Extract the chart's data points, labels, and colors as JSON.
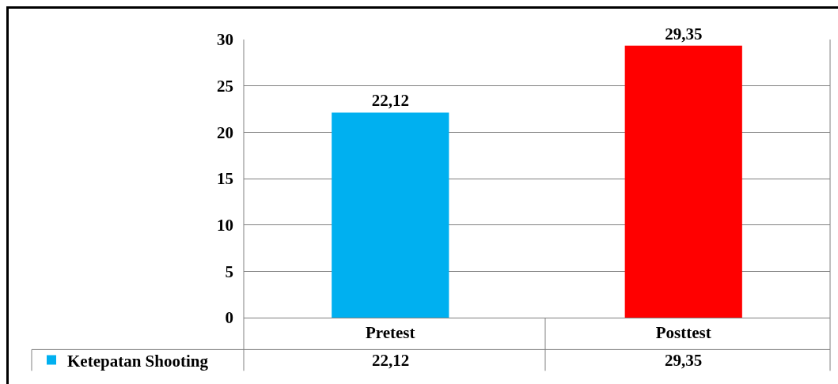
{
  "chart_data": {
    "type": "bar",
    "categories": [
      "Pretest",
      "Posttest"
    ],
    "series": [
      {
        "name": "Ketepatan Shooting",
        "colors": [
          "#00b0f0",
          "#ff0000"
        ],
        "values": [
          22.12,
          29.35
        ],
        "value_labels": [
          "22,12",
          "29,35"
        ]
      }
    ],
    "ylim": [
      0,
      30
    ],
    "yticks": [
      0,
      5,
      10,
      15,
      20,
      25,
      30
    ],
    "grid": "y",
    "legend": "bottom left"
  }
}
